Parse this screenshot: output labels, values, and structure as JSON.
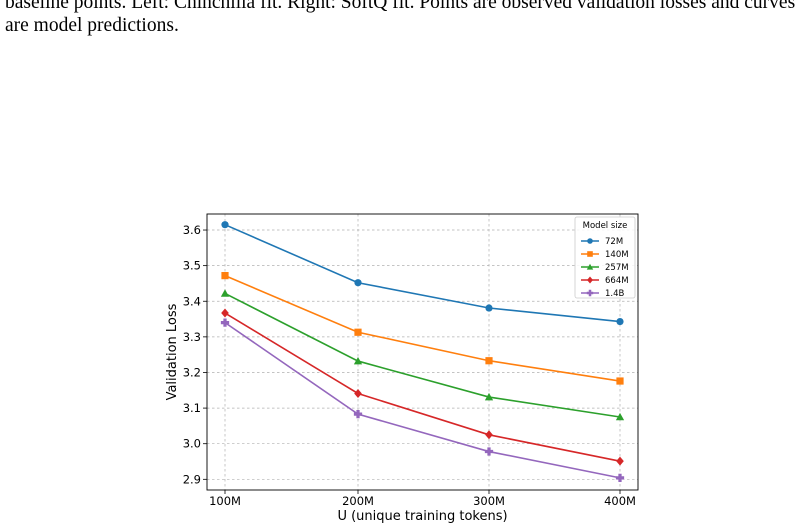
{
  "caption": {
    "line1": "baseline points. Left: Chinchilla fit. Right: SoftQ fit. Points are observed validation losses and curves",
    "line2": "are model predictions."
  },
  "chart_data": {
    "type": "line",
    "xlabel": "U (unique training tokens)",
    "ylabel": "Validation Loss",
    "categories": [
      "100M",
      "200M",
      "300M",
      "400M"
    ],
    "y_ticks": [
      "2.9",
      "3.0",
      "3.1",
      "3.2",
      "3.3",
      "3.4",
      "3.5",
      "3.6"
    ],
    "ylim": [
      2.87,
      3.645
    ],
    "grid": true,
    "legend": {
      "title": "Model size",
      "placement": "top-right"
    },
    "series": [
      {
        "name": "72M",
        "marker": "circle",
        "color": "#1f77b4",
        "values": [
          3.615,
          3.452,
          3.381,
          3.343
        ]
      },
      {
        "name": "140M",
        "marker": "square",
        "color": "#ff7f0e",
        "values": [
          3.472,
          3.313,
          3.233,
          3.176
        ]
      },
      {
        "name": "257M",
        "marker": "triangle",
        "color": "#2ca02c",
        "values": [
          3.422,
          3.232,
          3.131,
          3.075
        ]
      },
      {
        "name": "664M",
        "marker": "diamond",
        "color": "#d62728",
        "values": [
          3.367,
          3.141,
          3.025,
          2.951
        ]
      },
      {
        "name": "1.4B",
        "marker": "plus-filled",
        "color": "#9467bd",
        "values": [
          3.34,
          3.083,
          2.978,
          2.904
        ]
      }
    ]
  }
}
